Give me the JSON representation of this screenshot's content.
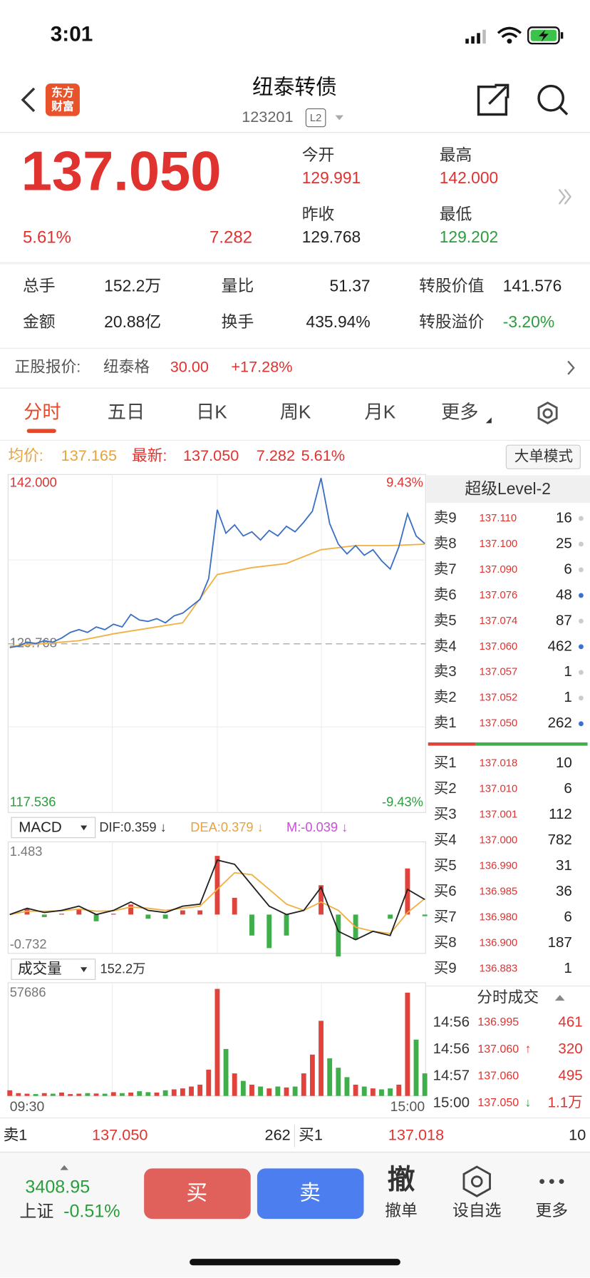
{
  "status": {
    "time": "3:01"
  },
  "header": {
    "logo": [
      "东方",
      "财富"
    ],
    "title": "纽泰转债",
    "code": "123201",
    "badge": "L2"
  },
  "quote": {
    "price": "137.050",
    "change_pct": "5.61%",
    "change": "7.282",
    "fields": [
      {
        "label": "今开",
        "value": "129.991"
      },
      {
        "label": "最高",
        "value": "142.000"
      },
      {
        "label": "昨收",
        "value": "129.768"
      },
      {
        "label": "最低",
        "value": "129.202"
      }
    ]
  },
  "stats": [
    [
      {
        "label": "总手",
        "value": "152.2万"
      },
      {
        "label": "量比",
        "value": "51.37"
      },
      {
        "label": "转股价值",
        "value": "141.576"
      }
    ],
    [
      {
        "label": "金额",
        "value": "20.88亿"
      },
      {
        "label": "换手",
        "value": "435.94%"
      },
      {
        "label": "转股溢价",
        "value": "-3.20%"
      }
    ]
  ],
  "stock": {
    "label": "正股报价:",
    "name": "纽泰格",
    "price": "30.00",
    "change": "+17.28%"
  },
  "tabs": [
    "分时",
    "五日",
    "日K",
    "周K",
    "月K",
    "更多"
  ],
  "info": {
    "avg_label": "均价:",
    "avg": "137.165",
    "last_label": "最新:",
    "last": "137.050",
    "change": "7.282",
    "change_pct": "5.61%",
    "mode_button": "大单模式"
  },
  "intraday": {
    "ylim": [
      117.536,
      142
    ],
    "yticks": [
      {
        "value": 142,
        "label": "142.000"
      },
      129.768,
      117.536
    ],
    "pct_labels": [
      "9.43%",
      "-9.43%"
    ],
    "price": {
      "color": "#3b6fc4",
      "values": [
        129.5,
        129.6,
        129.9,
        129.8,
        130.0,
        129.9,
        130.2,
        130.6,
        130.8,
        130.6,
        131.0,
        130.8,
        131.2,
        131.0,
        131.9,
        131.5,
        131.4,
        131.6,
        131.3,
        131.8,
        132.0,
        132.5,
        133.0,
        134.5,
        139.5,
        137.8,
        138.4,
        137.6,
        137.9,
        137.3,
        138.0,
        137.6,
        138.3,
        137.9,
        138.6,
        139.4,
        141.8,
        138.5,
        137.0,
        136.3,
        136.9,
        136.2,
        136.6,
        135.8,
        135.2,
        136.8,
        139.2,
        137.6,
        137.05
      ]
    },
    "avg": {
      "color": "#f0b042",
      "values": [
        129.6,
        129.8,
        130.0,
        130.5,
        130.9,
        131.3,
        134.8,
        135.3,
        135.6,
        136.6,
        136.9,
        136.9,
        137.0
      ]
    }
  },
  "macd": {
    "selector": "MACD",
    "dif_label": "DIF:0.359 ↓",
    "dea_label": "DEA:0.379 ↓",
    "m_label": "M:-0.039 ↓",
    "ylim": [
      -0.732,
      1.483
    ],
    "yticks": [
      1.483,
      -0.732
    ],
    "dif": {
      "color": "#222222",
      "values": [
        0.0,
        0.15,
        0.05,
        0.1,
        0.2,
        0.0,
        0.1,
        0.3,
        0.1,
        0.05,
        0.2,
        0.25,
        1.3,
        1.2,
        0.7,
        0.2,
        0.0,
        0.1,
        0.65,
        -0.4,
        -0.6,
        -0.4,
        -0.5,
        0.6,
        0.359
      ]
    },
    "dea": {
      "color": "#f0b042",
      "values": [
        0.0,
        0.08,
        0.08,
        0.09,
        0.13,
        0.08,
        0.09,
        0.18,
        0.15,
        0.1,
        0.15,
        0.2,
        0.6,
        1.0,
        0.95,
        0.6,
        0.25,
        0.1,
        0.3,
        0.1,
        -0.3,
        -0.4,
        -0.45,
        0.05,
        0.379
      ]
    },
    "m": {
      "values": [
        0,
        0.14,
        -0.06,
        0.02,
        0.14,
        -0.16,
        0.02,
        0.24,
        -0.1,
        -0.1,
        0.1,
        0.1,
        1.4,
        0.4,
        -0.5,
        -0.8,
        -0.5,
        0,
        0.7,
        -1.0,
        -0.6,
        0,
        -0.1,
        1.1,
        -0.039
      ]
    }
  },
  "volume": {
    "selector": "成交量",
    "total": "152.2万",
    "ylim": [
      0,
      57686
    ],
    "yticks": [
      57686
    ],
    "xlabels": [
      "09:30",
      "15:00"
    ],
    "values": [
      3000,
      1500,
      1200,
      1000,
      1500,
      1200,
      1800,
      1000,
      1200,
      1500,
      1300,
      1200,
      2000,
      1500,
      1800,
      2500,
      2000,
      1800,
      3000,
      3500,
      4000,
      5000,
      6000,
      14000,
      57000,
      25000,
      12000,
      8000,
      6000,
      5000,
      4000,
      5000,
      4500,
      5000,
      12000,
      22000,
      40000,
      20000,
      15000,
      10000,
      6000,
      5000,
      4000,
      3500,
      4000,
      6000,
      55000,
      30000,
      12000
    ]
  },
  "orderbook": {
    "title": "超级Level-2",
    "asks": [
      {
        "label": "卖9",
        "price": "137.110",
        "volume": "16",
        "dot": "#cccccc"
      },
      {
        "label": "卖8",
        "price": "137.100",
        "volume": "25",
        "dot": "#cccccc"
      },
      {
        "label": "卖7",
        "price": "137.090",
        "volume": "6",
        "dot": "#cccccc"
      },
      {
        "label": "卖6",
        "price": "137.076",
        "volume": "48",
        "dot": "#3a6fd8"
      },
      {
        "label": "卖5",
        "price": "137.074",
        "volume": "87",
        "dot": "#cccccc"
      },
      {
        "label": "卖4",
        "price": "137.060",
        "volume": "462",
        "dot": "#3a6fd8"
      },
      {
        "label": "卖3",
        "price": "137.057",
        "volume": "1",
        "dot": "#cccccc"
      },
      {
        "label": "卖2",
        "price": "137.052",
        "volume": "1",
        "dot": "#cccccc"
      },
      {
        "label": "卖1",
        "price": "137.050",
        "volume": "262",
        "dot": "#3a6fd8"
      }
    ],
    "bids": [
      {
        "label": "买1",
        "price": "137.018",
        "volume": "10"
      },
      {
        "label": "买2",
        "price": "137.010",
        "volume": "6"
      },
      {
        "label": "买3",
        "price": "137.001",
        "volume": "112"
      },
      {
        "label": "买4",
        "price": "137.000",
        "volume": "782"
      },
      {
        "label": "买5",
        "price": "136.990",
        "volume": "31"
      },
      {
        "label": "买6",
        "price": "136.985",
        "volume": "36"
      },
      {
        "label": "买7",
        "price": "136.980",
        "volume": "6"
      },
      {
        "label": "买8",
        "price": "136.900",
        "volume": "187"
      },
      {
        "label": "买9",
        "price": "136.883",
        "volume": "1"
      }
    ]
  },
  "trades": {
    "title": "分时成交",
    "rows": [
      {
        "time": "14:56",
        "price": "136.995",
        "volume": "461"
      },
      {
        "time": "14:56",
        "price": "137.060",
        "arrow": "↑",
        "volume": "320"
      },
      {
        "time": "14:57",
        "price": "137.060",
        "volume": "495"
      },
      {
        "time": "15:00",
        "price": "137.050",
        "arrow": "↓",
        "volume": "1.1万"
      }
    ]
  },
  "bottom_quote": {
    "ask": {
      "label": "卖1",
      "price": "137.050",
      "volume": "262"
    },
    "bid": {
      "label": "买1",
      "price": "137.018",
      "volume": "10"
    }
  },
  "footer": {
    "index_value": "3408.95",
    "index_name": "上证",
    "index_change": "-0.51%",
    "buy": "买",
    "sell": "卖",
    "cancel_icon": "撤",
    "cancel": "撤单",
    "watchlist": "设自选",
    "more": "更多"
  }
}
